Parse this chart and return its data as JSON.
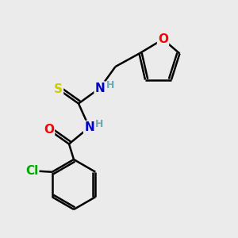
{
  "background_color": "#ebebeb",
  "atom_colors": {
    "O": "#ff0000",
    "N": "#0000cd",
    "S": "#cccc00",
    "Cl": "#00aa00",
    "C": "#000000",
    "H": "#6aabb5"
  },
  "bond_color": "#000000",
  "bond_width": 1.8,
  "font_size_atoms": 11,
  "font_size_H": 9,
  "figsize": [
    3.0,
    3.0
  ],
  "dpi": 100
}
